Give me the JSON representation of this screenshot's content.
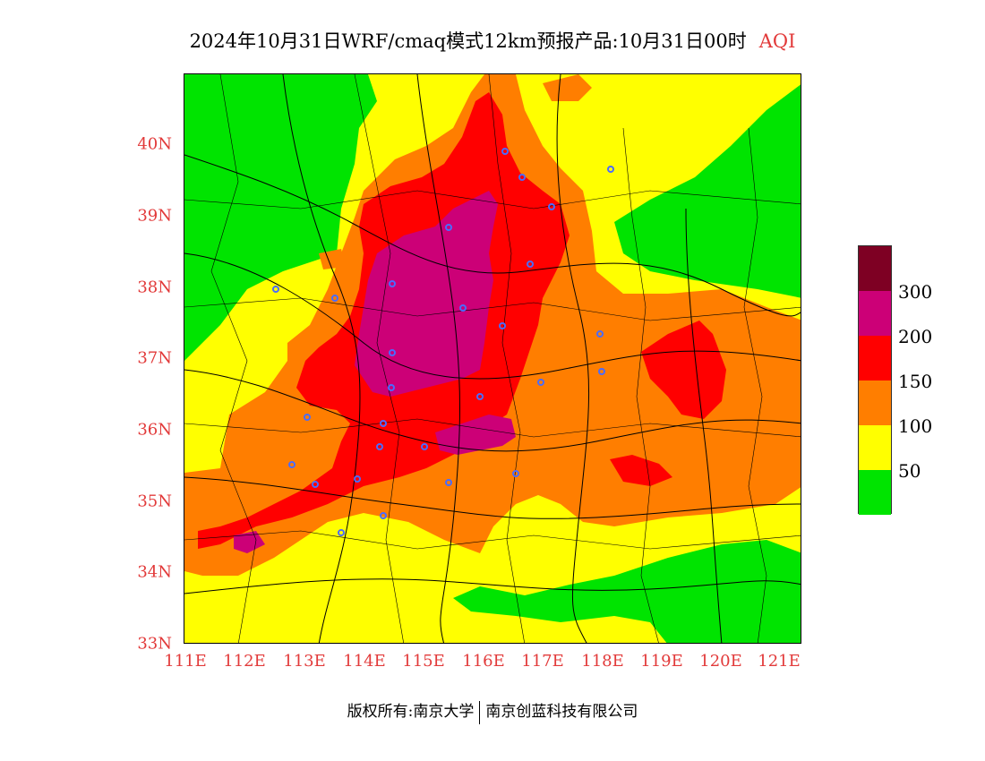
{
  "title": {
    "main": "2024年10月31日WRF/cmaq模式12km预报产品:10月31日00时",
    "variable": "AQI"
  },
  "map": {
    "lon_range": [
      111,
      121.4
    ],
    "lat_range": [
      33,
      41
    ],
    "x_ticks": [
      "111E",
      "112E",
      "113E",
      "114E",
      "115E",
      "116E",
      "117E",
      "118E",
      "119E",
      "120E",
      "121E"
    ],
    "y_ticks": [
      "33N",
      "34N",
      "35N",
      "36N",
      "37N",
      "38N",
      "39N",
      "40N"
    ]
  },
  "legend": {
    "levels": [
      "50",
      "100",
      "150",
      "200",
      "300"
    ],
    "colors": {
      "good": "#00e400",
      "moderate": "#ffff00",
      "usg": "#ff7e00",
      "unhealthy": "#ff0000",
      "very_unhealthy": "#cc0077",
      "hazardous": "#7e0023"
    }
  },
  "footer": {
    "copyright": "版权所有:南京大学",
    "company": "南京创蓝科技有限公司"
  }
}
